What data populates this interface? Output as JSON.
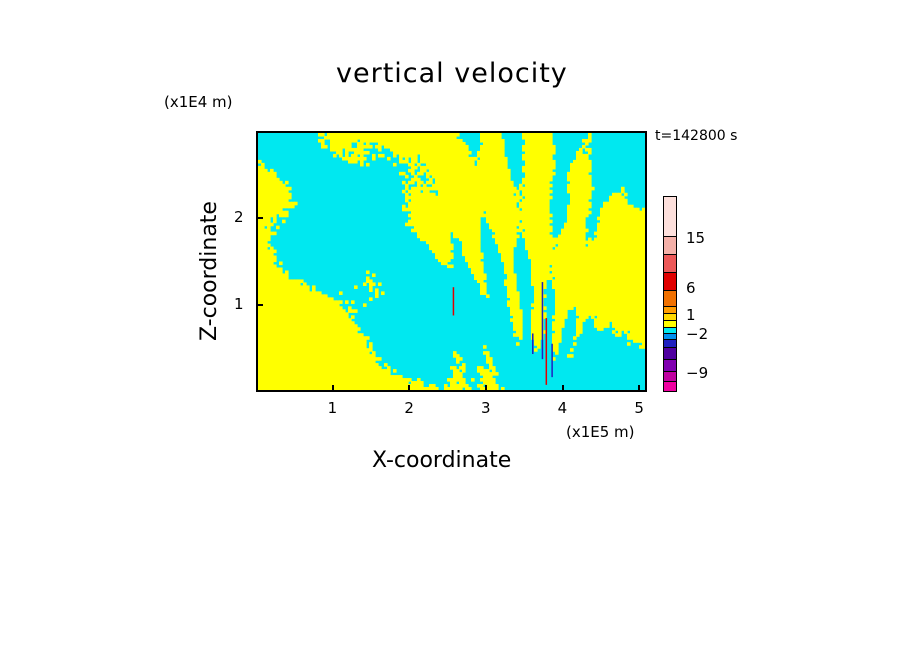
{
  "chart_data": {
    "type": "heatmap",
    "title": "vertical velocity",
    "xlabel": "X-coordinate",
    "ylabel": "Z-coordinate",
    "x_unit": "(x1E4 m)",
    "x_unit_bottom": "(x1E5 m)",
    "z_unit": "(x1E4 m)",
    "time_label": "t=142800 s",
    "x_ticks": [
      "1",
      "2",
      "3",
      "4",
      "5"
    ],
    "x_tick_values": [
      1,
      2,
      3,
      4,
      5
    ],
    "xlim": [
      0,
      5.1
    ],
    "y_ticks": [
      "1",
      "2"
    ],
    "y_tick_values": [
      1,
      2
    ],
    "ylim": [
      0,
      3.0
    ],
    "dominant_colors": {
      "positive_small": "#ffff00",
      "negative_small": "#00e8f0"
    },
    "colorbar": {
      "labels": [
        "15",
        "6",
        "1",
        "−2",
        "−9"
      ],
      "levels": [
        15,
        6,
        1,
        -2,
        -9
      ],
      "colors_top_to_bottom": [
        "#fde0dc",
        "#f4b0a8",
        "#ec5858",
        "#e00000",
        "#f07000",
        "#ff9c00",
        "#ffd800",
        "#ffff00",
        "#00e8f0",
        "#0090f0",
        "#2020c0",
        "#5000a0",
        "#8000b0",
        "#c000a0",
        "#f000a0"
      ]
    }
  }
}
